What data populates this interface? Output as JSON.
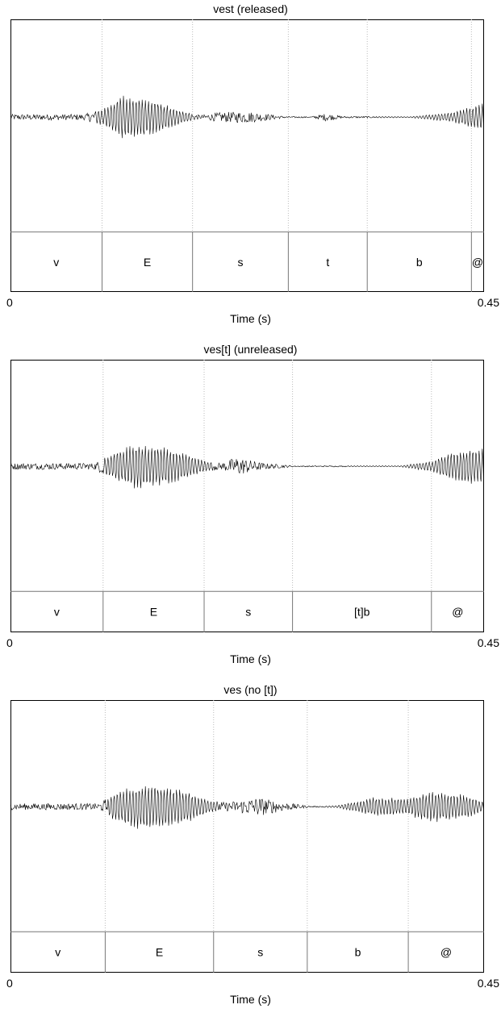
{
  "chart_data": [
    {
      "type": "waveform",
      "title": "vest (released)",
      "xlabel": "Time (s)",
      "xlim": [
        0,
        0.45
      ],
      "xticks": [
        "0",
        "0.45"
      ],
      "segments": [
        {
          "label": "v",
          "start": 0.0,
          "end": 0.087
        },
        {
          "label": "E",
          "start": 0.087,
          "end": 0.173
        },
        {
          "label": "s",
          "start": 0.173,
          "end": 0.264
        },
        {
          "label": "t",
          "start": 0.264,
          "end": 0.339
        },
        {
          "label": "b",
          "start": 0.339,
          "end": 0.438
        },
        {
          "label": "@",
          "start": 0.438,
          "end": 0.45
        }
      ],
      "tier_top_frac": 0.78,
      "envelope": [
        {
          "t": 0.0,
          "a": 0.03,
          "k": "n"
        },
        {
          "t": 0.07,
          "a": 0.03,
          "k": "n"
        },
        {
          "t": 0.09,
          "a": 0.1,
          "k": "v"
        },
        {
          "t": 0.105,
          "a": 0.23,
          "k": "v"
        },
        {
          "t": 0.13,
          "a": 0.2,
          "k": "v"
        },
        {
          "t": 0.165,
          "a": 0.06,
          "k": "v"
        },
        {
          "t": 0.18,
          "a": 0.02,
          "k": "n"
        },
        {
          "t": 0.2,
          "a": 0.05,
          "k": "n"
        },
        {
          "t": 0.225,
          "a": 0.06,
          "k": "n"
        },
        {
          "t": 0.26,
          "a": 0.01,
          "k": "n"
        },
        {
          "t": 0.285,
          "a": 0.005,
          "k": "n"
        },
        {
          "t": 0.3,
          "a": 0.04,
          "k": "n"
        },
        {
          "t": 0.315,
          "a": 0.01,
          "k": "n"
        },
        {
          "t": 0.38,
          "a": 0.005,
          "k": "v"
        },
        {
          "t": 0.42,
          "a": 0.05,
          "k": "v"
        },
        {
          "t": 0.45,
          "a": 0.16,
          "k": "v"
        }
      ]
    },
    {
      "type": "waveform",
      "title": "ves[t] (unreleased)",
      "xlabel": "Time (s)",
      "xlim": [
        0,
        0.45
      ],
      "xticks": [
        "0",
        "0.45"
      ],
      "segments": [
        {
          "label": "v",
          "start": 0.0,
          "end": 0.088
        },
        {
          "label": "E",
          "start": 0.088,
          "end": 0.184
        },
        {
          "label": "s",
          "start": 0.184,
          "end": 0.268
        },
        {
          "label": "[t]b",
          "start": 0.268,
          "end": 0.4
        },
        {
          "label": "@",
          "start": 0.4,
          "end": 0.45
        }
      ],
      "tier_top_frac": 0.85,
      "envelope": [
        {
          "t": 0.0,
          "a": 0.03,
          "k": "n"
        },
        {
          "t": 0.08,
          "a": 0.03,
          "k": "n"
        },
        {
          "t": 0.095,
          "a": 0.12,
          "k": "v"
        },
        {
          "t": 0.12,
          "a": 0.22,
          "k": "v"
        },
        {
          "t": 0.15,
          "a": 0.18,
          "k": "v"
        },
        {
          "t": 0.185,
          "a": 0.05,
          "k": "v"
        },
        {
          "t": 0.2,
          "a": 0.03,
          "k": "n"
        },
        {
          "t": 0.215,
          "a": 0.09,
          "k": "n"
        },
        {
          "t": 0.24,
          "a": 0.03,
          "k": "n"
        },
        {
          "t": 0.27,
          "a": 0.005,
          "k": "n"
        },
        {
          "t": 0.37,
          "a": 0.005,
          "k": "v"
        },
        {
          "t": 0.4,
          "a": 0.05,
          "k": "v"
        },
        {
          "t": 0.425,
          "a": 0.16,
          "k": "v"
        },
        {
          "t": 0.45,
          "a": 0.17,
          "k": "v"
        }
      ]
    },
    {
      "type": "waveform",
      "title": "ves (no [t])",
      "xlabel": "Time (s)",
      "xlim": [
        0,
        0.45
      ],
      "xticks": [
        "0",
        "0.45"
      ],
      "segments": [
        {
          "label": "v",
          "start": 0.0,
          "end": 0.09
        },
        {
          "label": "E",
          "start": 0.09,
          "end": 0.193
        },
        {
          "label": "s",
          "start": 0.193,
          "end": 0.282
        },
        {
          "label": "b",
          "start": 0.282,
          "end": 0.378
        },
        {
          "label": "@",
          "start": 0.378,
          "end": 0.45
        }
      ],
      "tier_top_frac": 0.85,
      "envelope": [
        {
          "t": 0.0,
          "a": 0.03,
          "k": "n"
        },
        {
          "t": 0.085,
          "a": 0.03,
          "k": "n"
        },
        {
          "t": 0.1,
          "a": 0.15,
          "k": "v"
        },
        {
          "t": 0.125,
          "a": 0.23,
          "k": "v"
        },
        {
          "t": 0.16,
          "a": 0.18,
          "k": "v"
        },
        {
          "t": 0.19,
          "a": 0.06,
          "k": "v"
        },
        {
          "t": 0.205,
          "a": 0.04,
          "k": "n"
        },
        {
          "t": 0.235,
          "a": 0.09,
          "k": "n"
        },
        {
          "t": 0.26,
          "a": 0.04,
          "k": "n"
        },
        {
          "t": 0.285,
          "a": 0.005,
          "k": "n"
        },
        {
          "t": 0.31,
          "a": 0.01,
          "k": "v"
        },
        {
          "t": 0.345,
          "a": 0.09,
          "k": "v"
        },
        {
          "t": 0.375,
          "a": 0.08,
          "k": "v"
        },
        {
          "t": 0.4,
          "a": 0.15,
          "k": "v"
        },
        {
          "t": 0.43,
          "a": 0.12,
          "k": "v"
        },
        {
          "t": 0.45,
          "a": 0.05,
          "k": "v"
        }
      ]
    }
  ]
}
